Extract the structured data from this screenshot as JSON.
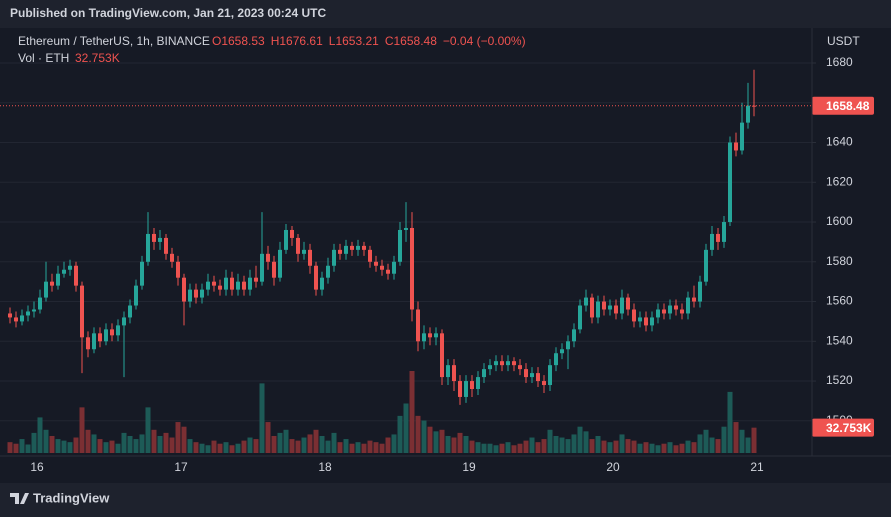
{
  "chart_data": {
    "type": "candlestick",
    "published": "Published on TradingView.com, Jan 21, 2023 00:24 UTC",
    "symbol": "Ethereum / TetherUS, 1h, BINANCE",
    "legend_values": [
      "O1658.53",
      "H1676.61",
      "L1653.21",
      "C1658.48",
      "−0.04 (−0.00%)"
    ],
    "volume_title": "Vol · ETH",
    "volume_label": "32.753K",
    "y_axis_label": "USDT",
    "brand": "TradingView",
    "up_color": "#26a69a",
    "down_color": "#ef5350",
    "volume_up_color": "#1d5b57",
    "volume_down_color": "#7b2f33",
    "grid": true,
    "ylim": [
      1482.8,
      1696.6
    ],
    "yticks": [
      1500,
      1520,
      1540,
      1560,
      1580,
      1600,
      1620,
      1640,
      1660,
      1680
    ],
    "categories": [
      null,
      null,
      null,
      null,
      "16",
      null,
      null,
      null,
      null,
      null,
      null,
      null,
      null,
      null,
      null,
      null,
      null,
      null,
      null,
      null,
      null,
      null,
      null,
      null,
      null,
      null,
      null,
      null,
      "17",
      null,
      null,
      null,
      null,
      null,
      null,
      null,
      null,
      null,
      null,
      null,
      null,
      null,
      null,
      null,
      null,
      null,
      null,
      null,
      null,
      null,
      null,
      null,
      "18",
      null,
      null,
      null,
      null,
      null,
      null,
      null,
      null,
      null,
      null,
      null,
      null,
      null,
      null,
      null,
      null,
      null,
      null,
      null,
      null,
      null,
      null,
      null,
      "19",
      null,
      null,
      null,
      null,
      null,
      null,
      null,
      null,
      null,
      null,
      null,
      null,
      null,
      null,
      null,
      null,
      null,
      null,
      null,
      null,
      null,
      null,
      null,
      "20",
      null,
      null,
      null,
      null,
      null,
      null,
      null,
      null,
      null,
      null,
      null,
      null,
      null,
      null,
      null,
      null,
      null,
      null,
      null,
      null,
      null,
      null,
      null,
      "21"
    ],
    "open": [
      1554,
      1552,
      1550,
      1553,
      1555,
      1556,
      1562,
      1570,
      1568,
      1574,
      1576,
      1578,
      1568,
      1542,
      1536,
      1544,
      1540,
      1546,
      1543,
      1548,
      1552,
      1558,
      1568,
      1580,
      1594,
      1590,
      1592,
      1584,
      1580,
      1572,
      1560,
      1566,
      1562,
      1566,
      1570,
      1568,
      1566,
      1572,
      1566,
      1570,
      1566,
      1572,
      1570,
      1584,
      1580,
      1572,
      1586,
      1596,
      1592,
      1584,
      1586,
      1578,
      1566,
      1572,
      1578,
      1586,
      1584,
      1588,
      1586,
      1588,
      1586,
      1580,
      1578,
      1576,
      1574,
      1580,
      1596,
      1597,
      1556,
      1540,
      1544,
      1542,
      1544,
      1522,
      1528,
      1520,
      1512,
      1520,
      1516,
      1522,
      1526,
      1528,
      1530,
      1528,
      1530,
      1528,
      1526,
      1522,
      1524,
      1520,
      1518,
      1528,
      1534,
      1536,
      1540,
      1546,
      1558,
      1562,
      1552,
      1560,
      1556,
      1558,
      1554,
      1562,
      1556,
      1550,
      1552,
      1548,
      1552,
      1556,
      1554,
      1558,
      1556,
      1554,
      1562,
      1560,
      1570,
      1586,
      1594,
      1590,
      1600,
      1640,
      1636,
      1650,
      1658.53
    ],
    "high": [
      1557,
      1555,
      1556,
      1558,
      1560,
      1566,
      1580,
      1574,
      1578,
      1580,
      1581,
      1580,
      1570,
      1545,
      1547,
      1547,
      1549,
      1549,
      1551,
      1555,
      1561,
      1571,
      1583,
      1605,
      1597,
      1596,
      1594,
      1587,
      1583,
      1574,
      1569,
      1569,
      1569,
      1574,
      1573,
      1571,
      1576,
      1575,
      1574,
      1573,
      1576,
      1578,
      1605,
      1588,
      1583,
      1590,
      1599,
      1598,
      1594,
      1590,
      1589,
      1580,
      1575,
      1582,
      1589,
      1589,
      1591,
      1590,
      1591,
      1590,
      1588,
      1583,
      1581,
      1579,
      1583,
      1600,
      1610,
      1605,
      1560,
      1548,
      1547,
      1547,
      1546,
      1531,
      1531,
      1523,
      1523,
      1523,
      1525,
      1529,
      1531,
      1533,
      1533,
      1533,
      1532,
      1531,
      1529,
      1527,
      1527,
      1523,
      1531,
      1537,
      1539,
      1543,
      1549,
      1561,
      1566,
      1564,
      1563,
      1563,
      1561,
      1561,
      1566,
      1564,
      1559,
      1555,
      1555,
      1555,
      1559,
      1559,
      1561,
      1561,
      1559,
      1565,
      1568,
      1573,
      1589,
      1598,
      1597,
      1603,
      1643,
      1645,
      1660,
      1670,
      1676.61
    ],
    "low": [
      1549,
      1547,
      1548,
      1550,
      1552,
      1554,
      1560,
      1565,
      1566,
      1572,
      1573,
      1565,
      1524,
      1532,
      1534,
      1537,
      1538,
      1540,
      1540,
      1522,
      1549,
      1556,
      1566,
      1578,
      1586,
      1586,
      1581,
      1577,
      1568,
      1548,
      1557,
      1559,
      1559,
      1563,
      1565,
      1563,
      1563,
      1563,
      1563,
      1563,
      1563,
      1567,
      1568,
      1576,
      1568,
      1570,
      1584,
      1588,
      1580,
      1581,
      1574,
      1563,
      1563,
      1569,
      1575,
      1581,
      1581,
      1583,
      1583,
      1583,
      1577,
      1575,
      1573,
      1571,
      1571,
      1578,
      1590,
      1550,
      1535,
      1536,
      1538,
      1538,
      1518,
      1518,
      1515,
      1508,
      1509,
      1512,
      1513,
      1519,
      1523,
      1525,
      1525,
      1525,
      1525,
      1523,
      1519,
      1519,
      1517,
      1514,
      1515,
      1525,
      1531,
      1526,
      1537,
      1544,
      1555,
      1549,
      1549,
      1553,
      1553,
      1551,
      1551,
      1553,
      1547,
      1547,
      1545,
      1545,
      1549,
      1551,
      1551,
      1553,
      1551,
      1551,
      1557,
      1557,
      1568,
      1583,
      1586,
      1587,
      1598,
      1633,
      1634,
      1647,
      1653.21
    ],
    "close": [
      1552,
      1550,
      1553,
      1555,
      1556,
      1562,
      1570,
      1568,
      1574,
      1576,
      1578,
      1568,
      1542,
      1536,
      1544,
      1540,
      1546,
      1543,
      1548,
      1552,
      1558,
      1568,
      1580,
      1594,
      1590,
      1592,
      1584,
      1580,
      1572,
      1560,
      1566,
      1562,
      1566,
      1570,
      1568,
      1566,
      1572,
      1566,
      1570,
      1566,
      1572,
      1570,
      1584,
      1580,
      1572,
      1586,
      1596,
      1592,
      1584,
      1586,
      1578,
      1566,
      1572,
      1578,
      1586,
      1584,
      1588,
      1586,
      1588,
      1586,
      1580,
      1578,
      1576,
      1574,
      1580,
      1596,
      1597,
      1556,
      1540,
      1544,
      1542,
      1544,
      1522,
      1528,
      1520,
      1512,
      1520,
      1516,
      1522,
      1526,
      1528,
      1530,
      1528,
      1530,
      1528,
      1526,
      1522,
      1524,
      1520,
      1518,
      1528,
      1534,
      1536,
      1540,
      1546,
      1558,
      1562,
      1552,
      1560,
      1556,
      1558,
      1554,
      1562,
      1556,
      1550,
      1552,
      1548,
      1552,
      1556,
      1554,
      1558,
      1556,
      1554,
      1562,
      1560,
      1570,
      1586,
      1594,
      1590,
      1600,
      1640,
      1636,
      1650,
      1658.53,
      1658.48
    ],
    "volume": [
      14000,
      12000,
      18000,
      11000,
      26000,
      46000,
      30000,
      22000,
      18000,
      16000,
      14000,
      20000,
      59000,
      30000,
      24000,
      18000,
      14000,
      16000,
      12000,
      26000,
      22000,
      18000,
      24000,
      59000,
      30000,
      22000,
      26000,
      20000,
      40000,
      34000,
      18000,
      14000,
      12000,
      10000,
      16000,
      12000,
      14000,
      10000,
      12000,
      16000,
      20000,
      18000,
      90000,
      40000,
      22000,
      26000,
      30000,
      18000,
      16000,
      20000,
      24000,
      30000,
      22000,
      16000,
      26000,
      14000,
      18000,
      12000,
      14000,
      12000,
      16000,
      14000,
      12000,
      20000,
      24000,
      48000,
      64000,
      106000,
      48000,
      42000,
      34000,
      28000,
      30000,
      22000,
      20000,
      26000,
      22000,
      16000,
      14000,
      12000,
      12000,
      10000,
      12000,
      14000,
      10000,
      12000,
      16000,
      20000,
      14000,
      18000,
      30000,
      22000,
      20000,
      18000,
      24000,
      34000,
      28000,
      18000,
      22000,
      16000,
      14000,
      16000,
      24000,
      18000,
      16000,
      12000,
      14000,
      12000,
      10000,
      12000,
      14000,
      10000,
      12000,
      16000,
      14000,
      24000,
      30000,
      20000,
      18000,
      34000,
      79000,
      40000,
      30000,
      20000,
      32753
    ]
  }
}
